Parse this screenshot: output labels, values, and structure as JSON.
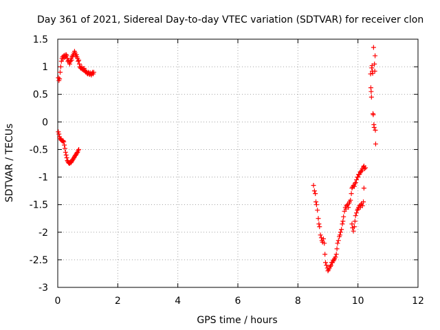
{
  "chart_data": {
    "type": "scatter",
    "title": "Day 361 of 2021, Sidereal Day-to-day VTEC variation (SDTVAR) for receiver clon",
    "xlabel": "GPS time / hours",
    "ylabel": "SDTVAR / TECUs",
    "xlim": [
      0,
      12
    ],
    "ylim": [
      -3,
      1.5
    ],
    "xticks": [
      0,
      2,
      4,
      6,
      8,
      10,
      12
    ],
    "yticks": [
      -3,
      -2.5,
      -2,
      -1.5,
      -1,
      -0.5,
      0,
      0.5,
      1,
      1.5
    ],
    "grid": true,
    "marker": "+",
    "colors": {
      "series": "#ff0000",
      "grid": "#a0a0a0",
      "axis": "#000000"
    },
    "series": [
      {
        "name": "SDTVAR",
        "x": [
          0.02,
          0.04,
          0.06,
          0.08,
          0.1,
          0.12,
          0.14,
          0.16,
          0.18,
          0.2,
          0.22,
          0.24,
          0.26,
          0.28,
          0.3,
          0.32,
          0.34,
          0.36,
          0.38,
          0.4,
          0.42,
          0.44,
          0.46,
          0.48,
          0.5,
          0.52,
          0.54,
          0.56,
          0.58,
          0.6,
          0.62,
          0.64,
          0.66,
          0.68,
          0.7,
          0.72,
          0.74,
          0.76,
          0.78,
          0.8,
          0.82,
          0.84,
          0.86,
          0.88,
          0.9,
          0.92,
          0.94,
          0.96,
          0.98,
          1.0,
          1.02,
          1.04,
          1.06,
          1.08,
          1.1,
          1.12,
          1.14,
          1.16,
          1.18,
          1.2,
          0.02,
          0.04,
          0.06,
          0.08,
          0.1,
          0.12,
          0.14,
          0.16,
          0.18,
          0.2,
          0.22,
          0.24,
          0.26,
          0.28,
          0.3,
          0.32,
          0.34,
          0.36,
          0.38,
          0.4,
          0.42,
          0.44,
          0.46,
          0.48,
          0.5,
          0.52,
          0.54,
          0.56,
          0.58,
          0.6,
          0.62,
          0.64,
          0.66,
          0.68,
          0.7,
          8.52,
          8.55,
          8.58,
          8.6,
          8.62,
          8.65,
          8.68,
          8.7,
          8.72,
          8.75,
          8.78,
          8.8,
          8.82,
          8.85,
          8.88,
          8.9,
          8.92,
          8.95,
          8.98,
          9.0,
          9.02,
          9.05,
          9.08,
          9.1,
          9.12,
          9.15,
          9.18,
          9.2,
          9.22,
          9.25,
          9.28,
          9.3,
          9.32,
          9.35,
          9.38,
          9.4,
          9.42,
          9.45,
          9.48,
          9.5,
          9.52,
          9.55,
          9.58,
          9.6,
          9.62,
          9.65,
          9.68,
          9.7,
          9.72,
          9.75,
          9.78,
          9.8,
          9.82,
          9.85,
          9.88,
          9.9,
          9.92,
          9.95,
          9.98,
          10.0,
          10.02,
          10.05,
          10.08,
          10.1,
          10.12,
          10.15,
          10.18,
          10.2,
          10.22,
          10.25,
          9.8,
          9.82,
          9.85,
          9.88,
          9.9,
          9.92,
          9.95,
          9.98,
          10.0,
          10.02,
          10.05,
          10.08,
          10.1,
          10.12,
          10.15,
          10.18,
          10.2,
          10.42,
          10.43,
          10.44,
          10.45,
          10.46,
          10.47,
          10.48,
          10.49,
          10.5,
          10.51,
          10.52,
          10.53,
          10.54,
          10.55,
          10.56,
          10.57,
          10.58,
          10.59
        ],
        "y": [
          0.8,
          0.75,
          0.78,
          0.9,
          1.0,
          1.1,
          1.15,
          1.18,
          1.15,
          1.2,
          1.17,
          1.21,
          1.18,
          1.22,
          1.2,
          1.15,
          1.1,
          1.12,
          1.08,
          1.05,
          1.1,
          1.15,
          1.12,
          1.18,
          1.2,
          1.22,
          1.25,
          1.28,
          1.25,
          1.2,
          1.22,
          1.18,
          1.15,
          1.1,
          1.12,
          1.05,
          1.0,
          0.98,
          0.97,
          1.0,
          0.95,
          0.96,
          0.94,
          0.97,
          0.93,
          0.92,
          0.9,
          0.91,
          0.88,
          0.87,
          0.9,
          0.88,
          0.86,
          0.89,
          0.87,
          0.85,
          0.88,
          0.9,
          0.87,
          0.9,
          -0.18,
          -0.22,
          -0.27,
          -0.3,
          -0.32,
          -0.33,
          -0.34,
          -0.35,
          -0.34,
          -0.36,
          -0.42,
          -0.48,
          -0.55,
          -0.6,
          -0.65,
          -0.7,
          -0.72,
          -0.74,
          -0.75,
          -0.75,
          -0.73,
          -0.74,
          -0.72,
          -0.7,
          -0.68,
          -0.67,
          -0.65,
          -0.63,
          -0.61,
          -0.6,
          -0.58,
          -0.56,
          -0.55,
          -0.52,
          -0.5,
          -1.15,
          -1.25,
          -1.3,
          -1.45,
          -1.5,
          -1.6,
          -1.75,
          -1.85,
          -1.9,
          -2.05,
          -2.1,
          -2.15,
          -2.18,
          -2.12,
          -2.2,
          -2.4,
          -2.55,
          -2.6,
          -2.65,
          -2.7,
          -2.68,
          -2.65,
          -2.62,
          -2.6,
          -2.55,
          -2.55,
          -2.52,
          -2.5,
          -2.48,
          -2.45,
          -2.4,
          -2.3,
          -2.2,
          -2.15,
          -2.08,
          -2.05,
          -2.0,
          -1.95,
          -1.85,
          -1.8,
          -1.72,
          -1.62,
          -1.55,
          -1.58,
          -1.52,
          -1.5,
          -1.55,
          -1.48,
          -1.45,
          -1.42,
          -1.3,
          -1.2,
          -1.18,
          -1.15,
          -1.17,
          -1.12,
          -1.1,
          -1.05,
          -1.0,
          -1.0,
          -0.95,
          -0.95,
          -0.92,
          -0.9,
          -0.88,
          -0.85,
          -0.82,
          -0.8,
          -0.85,
          -0.83,
          -1.85,
          -1.92,
          -1.98,
          -1.9,
          -1.8,
          -1.7,
          -1.65,
          -1.6,
          -1.58,
          -1.55,
          -1.52,
          -1.55,
          -1.5,
          -1.48,
          -1.52,
          -1.45,
          -1.2,
          0.87,
          0.62,
          0.55,
          0.45,
          0.98,
          1.02,
          0.92,
          0.88,
          0.15,
          0.13,
          1.35,
          -0.05,
          -0.1,
          1.05,
          0.92,
          1.2,
          -0.15,
          -0.4
        ]
      }
    ]
  }
}
